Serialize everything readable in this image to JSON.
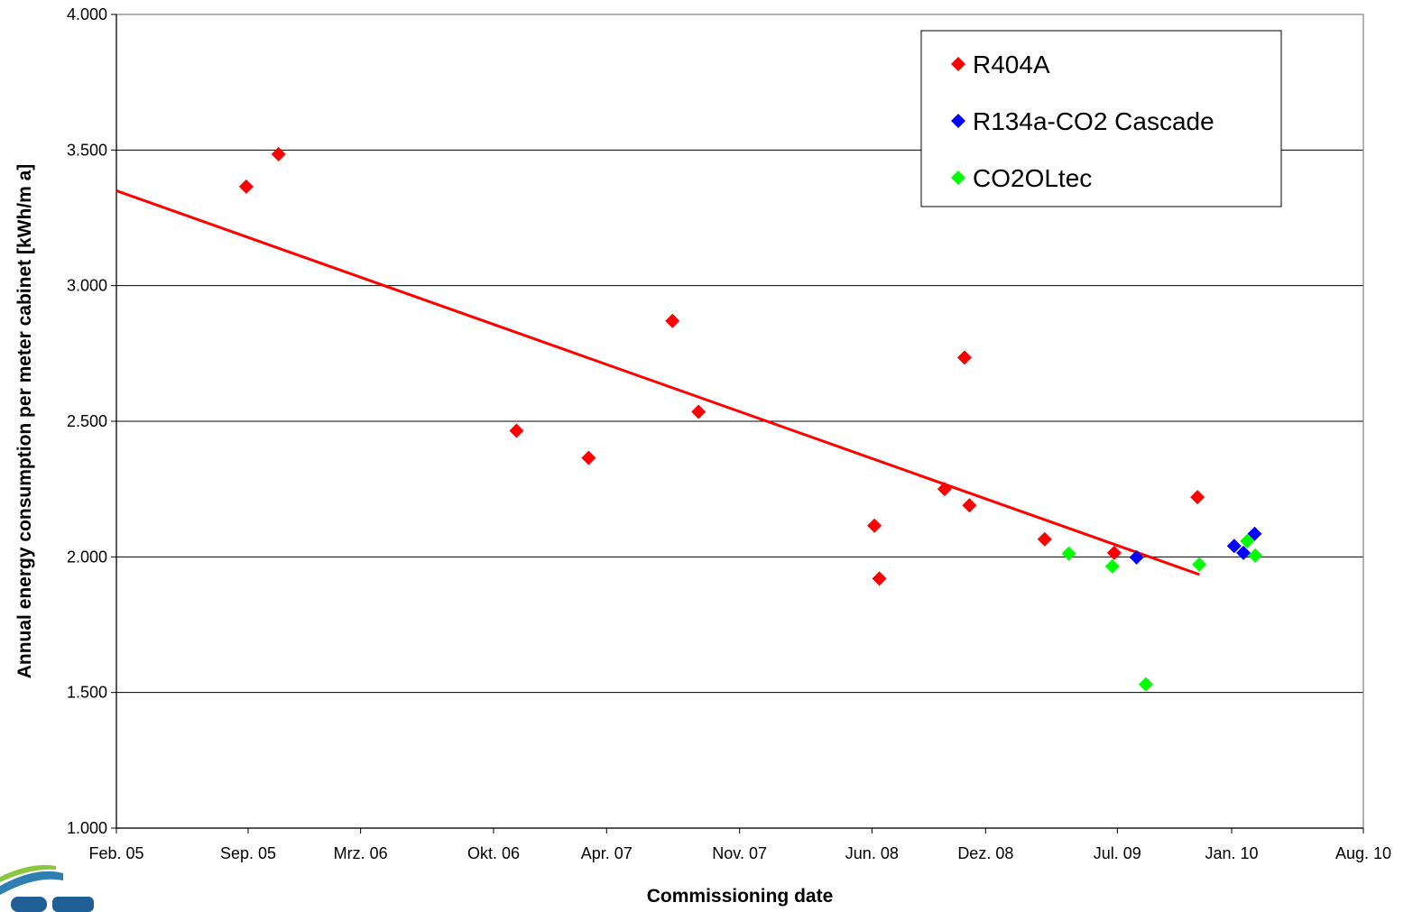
{
  "chart_data": {
    "type": "scatter",
    "title": "",
    "xlabel": "Commissioning date",
    "ylabel": "Annual energy consumption per meter cabinet [kWh/m a]",
    "x_type": "date",
    "xlim": [
      "2005-02-01",
      "2010-08-01"
    ],
    "x_ticks": [
      {
        "date": "2005-02-01",
        "label": "Feb. 05"
      },
      {
        "date": "2005-09-01",
        "label": "Sep. 05"
      },
      {
        "date": "2006-03-01",
        "label": "Mrz. 06"
      },
      {
        "date": "2006-10-01",
        "label": "Okt. 06"
      },
      {
        "date": "2007-04-01",
        "label": "Apr. 07"
      },
      {
        "date": "2007-11-01",
        "label": "Nov. 07"
      },
      {
        "date": "2008-06-01",
        "label": "Jun. 08"
      },
      {
        "date": "2008-12-01",
        "label": "Dez. 08"
      },
      {
        "date": "2009-07-01",
        "label": "Jul. 09"
      },
      {
        "date": "2010-01-01",
        "label": "Jan. 10"
      },
      {
        "date": "2010-08-01",
        "label": "Aug. 10"
      }
    ],
    "ylim": [
      1000,
      4000
    ],
    "y_ticks": [
      {
        "value": 1000,
        "label": "1.000"
      },
      {
        "value": 1500,
        "label": "1.500"
      },
      {
        "value": 2000,
        "label": "2.000"
      },
      {
        "value": 2500,
        "label": "2.500"
      },
      {
        "value": 3000,
        "label": "3.000"
      },
      {
        "value": 3500,
        "label": "3.500"
      },
      {
        "value": 4000,
        "label": "4.000"
      }
    ],
    "grid": "horizontal",
    "legend_position": "top-right",
    "series": [
      {
        "name": "R404A",
        "color": "#ff0000",
        "marker": "diamond",
        "points": [
          {
            "x": "2005-08-29",
            "y": 3365
          },
          {
            "x": "2005-10-20",
            "y": 3485
          },
          {
            "x": "2006-11-07",
            "y": 2465
          },
          {
            "x": "2007-03-03",
            "y": 2365
          },
          {
            "x": "2007-07-16",
            "y": 2870
          },
          {
            "x": "2007-08-27",
            "y": 2535
          },
          {
            "x": "2008-06-05",
            "y": 2115
          },
          {
            "x": "2008-06-13",
            "y": 1920
          },
          {
            "x": "2008-09-26",
            "y": 2250
          },
          {
            "x": "2008-10-28",
            "y": 2735
          },
          {
            "x": "2008-11-05",
            "y": 2190
          },
          {
            "x": "2009-03-06",
            "y": 2065
          },
          {
            "x": "2009-06-26",
            "y": 2015
          },
          {
            "x": "2009-11-07",
            "y": 2220
          }
        ]
      },
      {
        "name": "R134a-CO2 Cascade",
        "color": "#0000ff",
        "marker": "diamond",
        "points": [
          {
            "x": "2009-08-01",
            "y": 1998
          },
          {
            "x": "2010-01-05",
            "y": 2040
          },
          {
            "x": "2010-01-20",
            "y": 2015
          },
          {
            "x": "2010-02-07",
            "y": 2085
          }
        ]
      },
      {
        "name": "CO2OLtec",
        "color": "#00ff00",
        "marker": "diamond",
        "points": [
          {
            "x": "2009-04-14",
            "y": 2012
          },
          {
            "x": "2009-06-23",
            "y": 1965
          },
          {
            "x": "2009-08-16",
            "y": 1530
          },
          {
            "x": "2009-11-10",
            "y": 1972
          },
          {
            "x": "2010-01-26",
            "y": 2058
          },
          {
            "x": "2010-02-08",
            "y": 2005
          }
        ]
      }
    ],
    "trendline": {
      "series": "R404A",
      "type": "linear",
      "color": "#ff0000",
      "x": [
        "2005-02-01",
        "2009-11-10"
      ],
      "y": [
        3350,
        1935
      ]
    }
  }
}
